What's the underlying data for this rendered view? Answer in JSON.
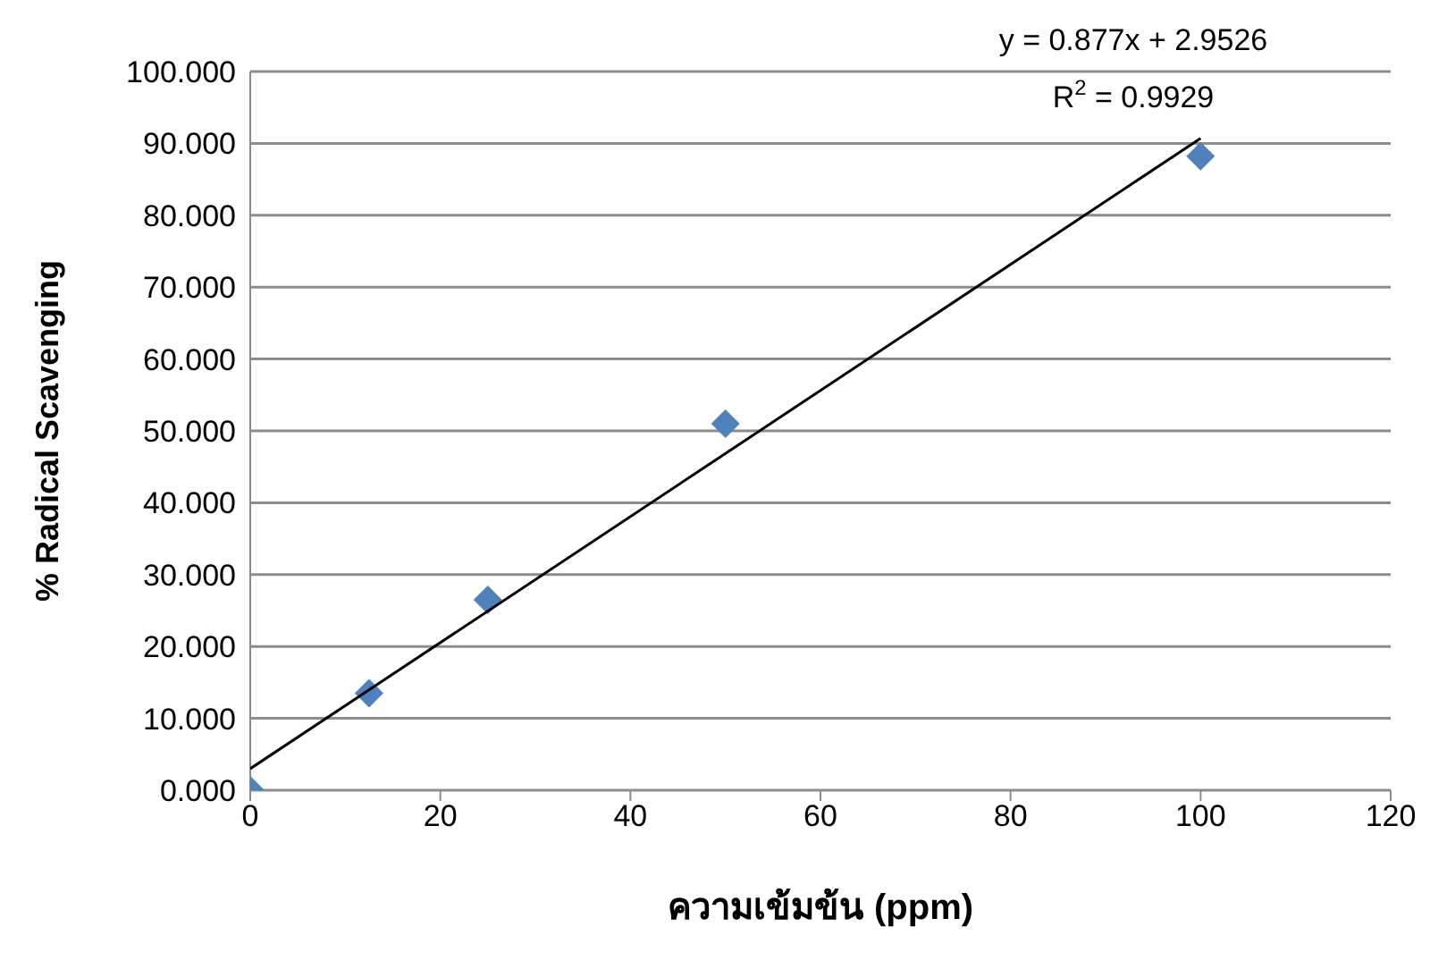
{
  "chart_data": {
    "type": "scatter",
    "xlabel": "ความเข้มข้น (ppm)",
    "ylabel": "% Radical Scavenging",
    "x": [
      0,
      12.5,
      25,
      50,
      100
    ],
    "series": [
      {
        "type": "scatter",
        "color": "#4f81bd",
        "marker": "diamond",
        "values": [
          0,
          13.5,
          26.5,
          51,
          88.2
        ]
      },
      {
        "type": "line",
        "color": "#000000",
        "marker": "none",
        "x": [
          0,
          100
        ],
        "values": [
          3.0,
          90.7
        ]
      }
    ],
    "annotations": [
      "y = 0.877x + 2.9526",
      "R$^{2}$ = 0.9929"
    ],
    "xlim": [
      0,
      120
    ],
    "xticks": [
      0,
      20,
      40,
      60,
      80,
      100,
      120
    ],
    "ylim": [
      0,
      100
    ],
    "yticks": [
      {
        "value": 0,
        "label": "0.000"
      },
      {
        "value": 10,
        "label": "10.000"
      },
      {
        "value": 20,
        "label": "20.000"
      },
      {
        "value": 30,
        "label": "30.000"
      },
      {
        "value": 40,
        "label": "40.000"
      },
      {
        "value": 50,
        "label": "50.000"
      },
      {
        "value": 60,
        "label": "60.000"
      },
      {
        "value": 70,
        "label": "70.000"
      },
      {
        "value": 80,
        "label": "80.000"
      },
      {
        "value": 90,
        "label": "90.000"
      },
      {
        "value": 100,
        "label": "100.000"
      }
    ],
    "grid": "y"
  }
}
